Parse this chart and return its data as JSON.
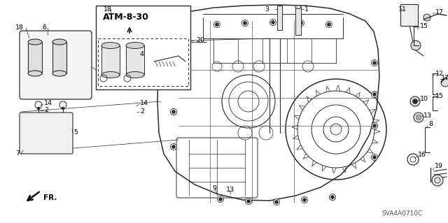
{
  "bg_color": "#ffffff",
  "dc": "#2a2a2a",
  "lg": "#888888",
  "box_label": "ATM-8-30",
  "watermark": "SVA4A0710C",
  "figsize": [
    6.4,
    3.19
  ],
  "dpi": 100
}
